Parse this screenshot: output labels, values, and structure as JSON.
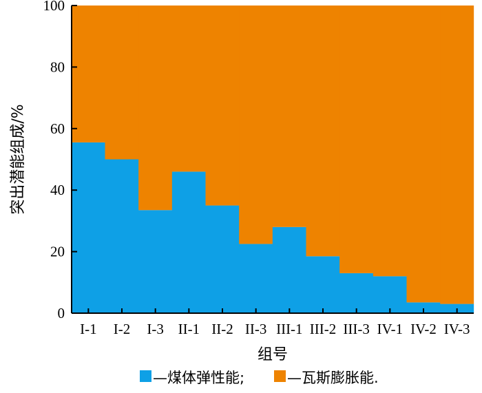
{
  "chart_data": {
    "type": "bar",
    "stacked": true,
    "xlabel": "组号",
    "ylabel": "突出潜能组成/%",
    "ylim": [
      0,
      100
    ],
    "yticks": [
      0,
      20,
      40,
      60,
      80,
      100
    ],
    "categories": [
      "I-1",
      "I-2",
      "I-3",
      "II-1",
      "II-2",
      "II-3",
      "III-1",
      "III-2",
      "III-3",
      "IV-1",
      "IV-2",
      "IV-3"
    ],
    "series": [
      {
        "name": "煤体弹性能",
        "color": "#0ea0e6",
        "values": [
          55.5,
          50,
          33.5,
          46,
          35,
          22.5,
          28,
          18.5,
          13,
          12,
          3.5,
          3
        ]
      },
      {
        "name": "瓦斯膨胀能",
        "color": "#ee8300",
        "values": [
          44.5,
          50,
          66.5,
          54,
          65,
          77.5,
          72,
          81.5,
          87,
          88,
          96.5,
          97
        ]
      }
    ],
    "legend": {
      "position": "bottom",
      "items": [
        {
          "marker_color": "#0ea0e6",
          "text": "—煤体弹性能;"
        },
        {
          "marker_color": "#ee8300",
          "text": "—瓦斯膨胀能."
        }
      ]
    },
    "grid": false
  }
}
